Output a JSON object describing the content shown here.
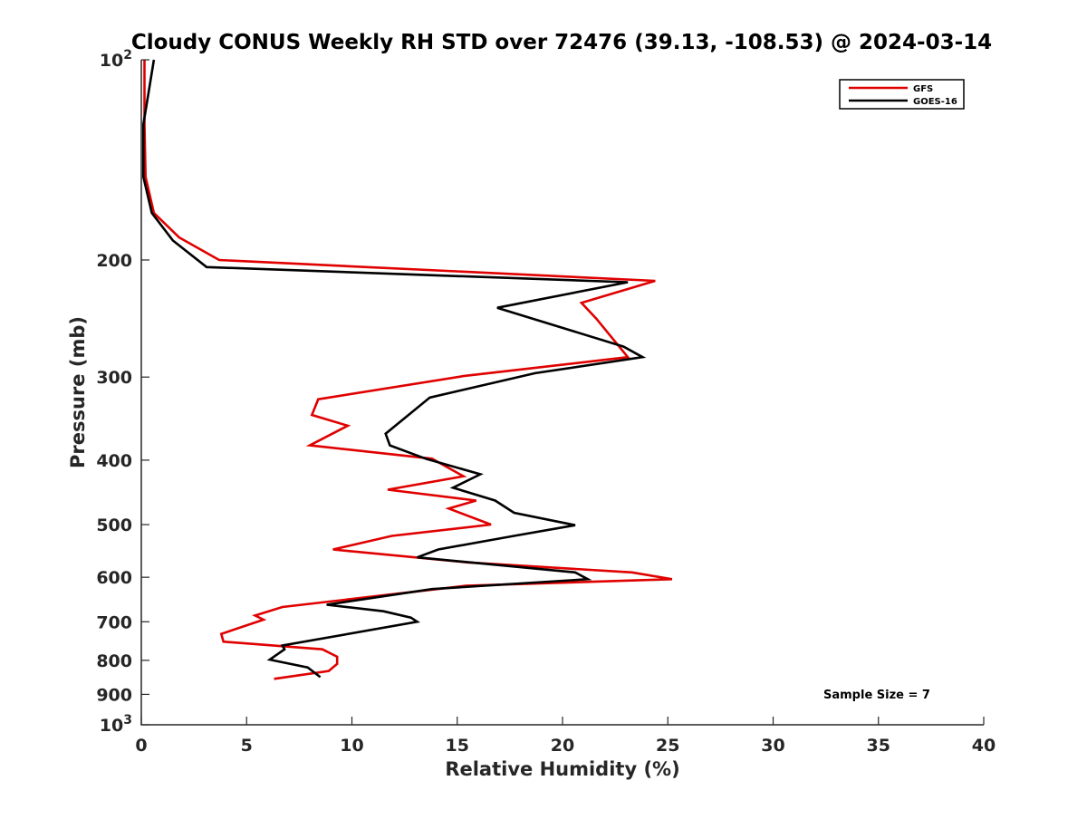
{
  "chart_data": {
    "type": "line",
    "title": "Cloudy CONUS Weekly RH STD over 72476 (39.13, -108.53) @ 2024-03-14",
    "xlabel": "Relative Humidity (%)",
    "ylabel": "Pressure (mb)",
    "xlim": [
      0,
      40
    ],
    "ylim": [
      100,
      1000
    ],
    "y_scale": "log",
    "y_reversed": true,
    "grid": false,
    "legend_position": "top-right",
    "x_ticks": [
      "0",
      "5",
      "10",
      "15",
      "20",
      "25",
      "30",
      "35",
      "40"
    ],
    "y_ticks": [
      {
        "value": 100,
        "base": "10",
        "exp": "2"
      },
      {
        "value": 200,
        "label": "200"
      },
      {
        "value": 300,
        "label": "300"
      },
      {
        "value": 400,
        "label": "400"
      },
      {
        "value": 500,
        "label": "500"
      },
      {
        "value": 600,
        "label": "600"
      },
      {
        "value": 700,
        "label": "700"
      },
      {
        "value": 800,
        "label": "800"
      },
      {
        "value": 900,
        "label": "900"
      },
      {
        "value": 1000,
        "base": "10",
        "exp": "3"
      }
    ],
    "series": [
      {
        "name": "GFS",
        "color": "#e00000",
        "points": [
          [
            0.15,
            100
          ],
          [
            0.15,
            125
          ],
          [
            0.2,
            150
          ],
          [
            0.6,
            170
          ],
          [
            1.8,
            185
          ],
          [
            3.7,
            200
          ],
          [
            24.4,
            215
          ],
          [
            20.9,
            232
          ],
          [
            21.6,
            245
          ],
          [
            23.1,
            280
          ],
          [
            15.3,
            299
          ],
          [
            8.4,
            324
          ],
          [
            8.1,
            342
          ],
          [
            9.8,
            355
          ],
          [
            8.0,
            380
          ],
          [
            13.8,
            398
          ],
          [
            15.3,
            423
          ],
          [
            11.7,
            443
          ],
          [
            15.9,
            460
          ],
          [
            14.6,
            473
          ],
          [
            16.6,
            500
          ],
          [
            11.9,
            520
          ],
          [
            9.1,
            545
          ],
          [
            15.5,
            570
          ],
          [
            23.3,
            590
          ],
          [
            25.2,
            604
          ],
          [
            15.4,
            618
          ],
          [
            6.7,
            665
          ],
          [
            5.4,
            685
          ],
          [
            5.8,
            695
          ],
          [
            3.8,
            730
          ],
          [
            3.9,
            750
          ],
          [
            8.6,
            770
          ],
          [
            9.3,
            790
          ],
          [
            9.3,
            810
          ],
          [
            8.9,
            830
          ],
          [
            6.3,
            853
          ]
        ]
      },
      {
        "name": "GOES-16",
        "color": "#000000",
        "points": [
          [
            0.6,
            100
          ],
          [
            0.1,
            125
          ],
          [
            0.1,
            150
          ],
          [
            0.5,
            170
          ],
          [
            1.5,
            187
          ],
          [
            3.1,
            205
          ],
          [
            23.1,
            216
          ],
          [
            16.9,
            236
          ],
          [
            22.9,
            270
          ],
          [
            23.8,
            280
          ],
          [
            18.7,
            296
          ],
          [
            13.7,
            322
          ],
          [
            11.6,
            365
          ],
          [
            11.8,
            380
          ],
          [
            13.5,
            398
          ],
          [
            16.1,
            420
          ],
          [
            14.8,
            440
          ],
          [
            16.8,
            460
          ],
          [
            17.7,
            480
          ],
          [
            20.6,
            501
          ],
          [
            17.7,
            520
          ],
          [
            14.1,
            545
          ],
          [
            13.1,
            560
          ],
          [
            20.6,
            590
          ],
          [
            21.2,
            604
          ],
          [
            13.8,
            625
          ],
          [
            8.8,
            660
          ],
          [
            11.5,
            675
          ],
          [
            12.8,
            690
          ],
          [
            13.1,
            700
          ],
          [
            6.7,
            760
          ],
          [
            6.8,
            770
          ],
          [
            6.1,
            798
          ],
          [
            7.9,
            820
          ],
          [
            8.5,
            848
          ]
        ]
      }
    ],
    "annotation": "Sample Size = 7"
  }
}
